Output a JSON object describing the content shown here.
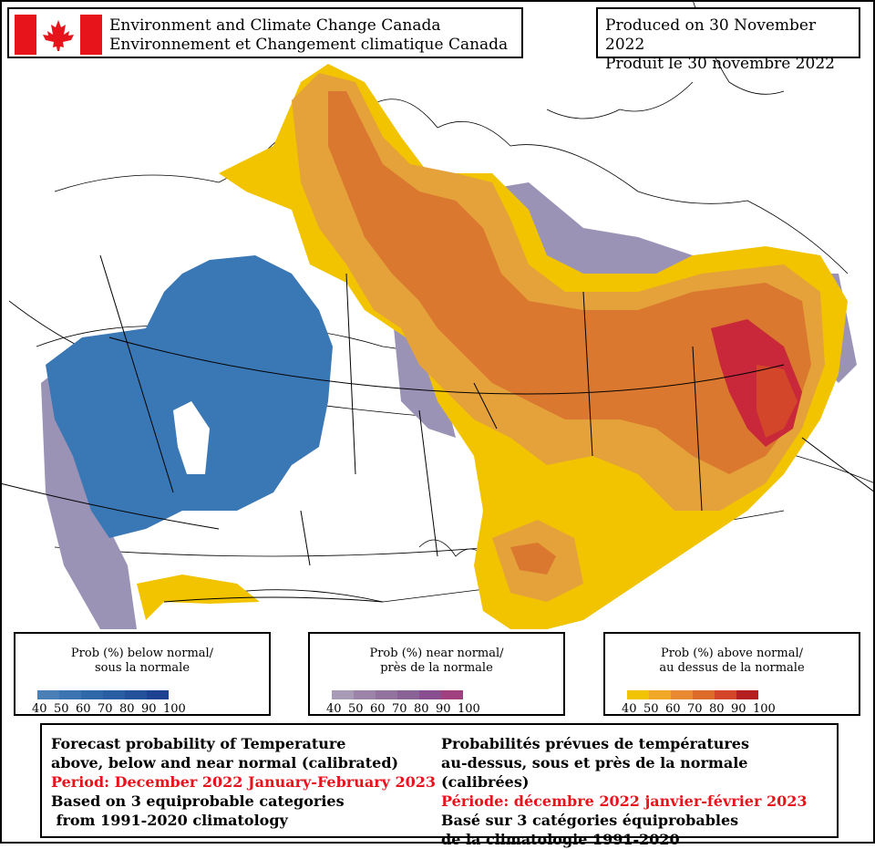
{
  "header_left": {
    "line1": "Environment and Climate Change Canada",
    "line2": "Environnement et Changement climatique Canada"
  },
  "header_right": {
    "line1": "Produced on 30 November 2022",
    "line2": "Produit le 30 novembre 2022"
  },
  "legends": {
    "below": {
      "title1": "Prob (%) below normal/",
      "title2": "sous la normale",
      "ticks": [
        "40",
        "50",
        "60",
        "70",
        "80",
        "90",
        "100"
      ],
      "colors": [
        "#4a7fb8",
        "#3b74b0",
        "#2f68a8",
        "#2a5ea3",
        "#23519a",
        "#1c4291"
      ]
    },
    "near": {
      "title1": "Prob (%) near normal/",
      "title2": "près de la normale",
      "ticks": [
        "40",
        "50",
        "60",
        "70",
        "80",
        "90",
        "100"
      ],
      "colors": [
        "#a79bb5",
        "#9b84a8",
        "#92739e",
        "#8a6396",
        "#894e8f",
        "#a0407f"
      ]
    },
    "above": {
      "title1": "Prob (%) above normal/",
      "title2": "au dessus de la normale",
      "ticks": [
        "40",
        "50",
        "60",
        "70",
        "80",
        "90",
        "100"
      ],
      "colors": [
        "#f2c400",
        "#f0a826",
        "#e98a33",
        "#dd6c2b",
        "#d3462a",
        "#b51f1f"
      ]
    }
  },
  "bottom_en": {
    "line1": "Forecast probability of Temperature",
    "line2": "above, below and near normal (calibrated)",
    "period": "Period: December 2022 January-February 2023",
    "line4": "Based on 3 equiprobable categories",
    "line5": " from 1991-2020 climatology"
  },
  "bottom_fr": {
    "line1": "Probabilités prévues de températures",
    "line2": "au-dessus, sous et près de la normale (calibrées)",
    "period": "Période: décembre 2022 janvier-février 2023",
    "line4": "Basé sur 3 catégories équiprobables",
    "line5": "de la climatologie 1991-2020"
  },
  "colors": {
    "below_normal": "#3a78b5",
    "near_normal": "#9b93b5",
    "above_yellow": "#f2c400",
    "above_orange": "#e6a23a",
    "above_dark": "#d9782e",
    "above_red": "#c8283a",
    "flag_red": "#e8141c"
  },
  "icons": {
    "flag": "canada-flag-icon"
  }
}
